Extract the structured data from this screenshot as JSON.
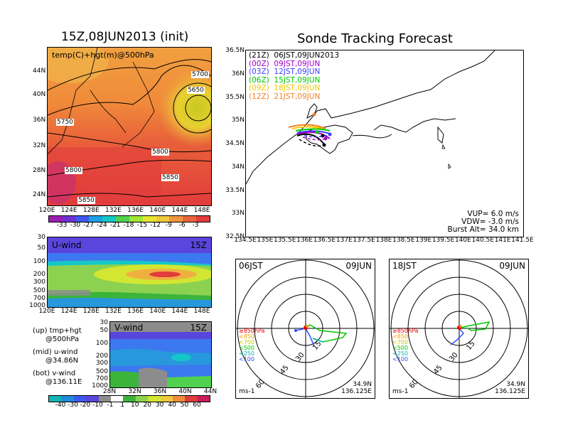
{
  "map_panel": {
    "title": "15Z,08JUN2013 (init)",
    "subtitle": "temp(C)+hgt(m)@500hPa",
    "lat_ticks": [
      "44N",
      "40N",
      "36N",
      "32N",
      "28N",
      "24N"
    ],
    "lon_ticks": [
      "120E",
      "124E",
      "128E",
      "132E",
      "136E",
      "140E",
      "144E",
      "148E"
    ],
    "contour_labels": [
      "5700",
      "5650",
      "5750",
      "5800",
      "5800",
      "5850",
      "5850"
    ],
    "colorbar_ticks": [
      "-33",
      "-30",
      "-27",
      "-24",
      "-21",
      "-18",
      "-15",
      "-12",
      "-9",
      "-6",
      "-3"
    ]
  },
  "uwind_panel": {
    "label": "U-wind",
    "time": "15Z",
    "p_ticks": [
      "30",
      "50",
      "100",
      "200",
      "300",
      "500",
      "700",
      "1000"
    ],
    "lon_ticks": [
      "120E",
      "124E",
      "128E",
      "132E",
      "136E",
      "140E",
      "144E",
      "148E"
    ]
  },
  "vwind_panel": {
    "label": "V-wind",
    "time": "15Z",
    "p_ticks": [
      "30",
      "50",
      "100",
      "200",
      "300",
      "500",
      "700",
      "1000"
    ],
    "lat_ticks": [
      "28N",
      "32N",
      "36N",
      "40N",
      "44N"
    ]
  },
  "side_notes": {
    "up": "(up) tmp+hgt",
    "up2": "@500hPa",
    "mid": "(mid) u-wind",
    "mid2": "@34.86N",
    "bot": "(bot) v-wind",
    "bot2": "@136.11E"
  },
  "wind_colorbar_ticks": [
    "-40",
    "-30",
    "-20",
    "-10",
    "-1",
    "1",
    "10",
    "20",
    "30",
    "40",
    "50",
    "60"
  ],
  "track_panel": {
    "title": "Sonde Tracking Forecast",
    "legend": [
      {
        "text": "(21Z)  06JST,09JUN2013",
        "color": "#000000"
      },
      {
        "text": "(00Z)  09JST,09JUN",
        "color": "#a000c8"
      },
      {
        "text": "(03Z)  12JST,09JUN",
        "color": "#3c3cff"
      },
      {
        "text": "(06Z)  15JST,09JUN",
        "color": "#00c800"
      },
      {
        "text": "(09Z)  18JST,09JUN",
        "color": "#f0c800"
      },
      {
        "text": "(12Z)  21JST,09JUN",
        "color": "#f08228"
      }
    ],
    "lat_ticks": [
      "36.5N",
      "36N",
      "35.5N",
      "35N",
      "34.5N",
      "34N",
      "33.5N",
      "33N",
      "32.5N"
    ],
    "lon_ticks": [
      "134.5E",
      "135E",
      "135.5E",
      "136E",
      "136.5E",
      "137E",
      "137.5E",
      "138E",
      "138.5E",
      "139E",
      "139.5E",
      "140E",
      "140.5E",
      "141E",
      "141.5E"
    ],
    "params": [
      "VUP=  6.0  m/s",
      "VDW= -3.0  m/s",
      "Burst Alt=  34.0  km"
    ]
  },
  "hodo_left": {
    "time": "06JST",
    "date": "09JUN",
    "rings": [
      "15",
      "30",
      "45",
      "60"
    ],
    "levels": [
      {
        "text": "≥850hPa",
        "color": "#e60000"
      },
      {
        "text": "<850",
        "color": "#f0a000"
      },
      {
        "text": "<700",
        "color": "#c8c800"
      },
      {
        "text": "<500",
        "color": "#00c800"
      },
      {
        "text": "<250",
        "color": "#00b4b4"
      },
      {
        "text": "<100",
        "color": "#2850ff"
      }
    ],
    "unit": "ms-1",
    "lat": "34.9N",
    "lon": "136.125E"
  },
  "hodo_right": {
    "time": "18JST",
    "date": "09JUN",
    "rings": [
      "15",
      "30",
      "45",
      "60"
    ],
    "levels": [
      {
        "text": "≥850hPa",
        "color": "#e60000"
      },
      {
        "text": "<850",
        "color": "#f0a000"
      },
      {
        "text": "<700",
        "color": "#c8c800"
      },
      {
        "text": "<500",
        "color": "#00c800"
      },
      {
        "text": "<250",
        "color": "#00b4b4"
      },
      {
        "text": "<100",
        "color": "#2850ff"
      }
    ],
    "unit": "ms-1",
    "lat": "34.9N",
    "lon": "136.125E"
  },
  "chart_data": {
    "type": "heatmap",
    "title": "15Z,08JUN2013 (init)"
  }
}
